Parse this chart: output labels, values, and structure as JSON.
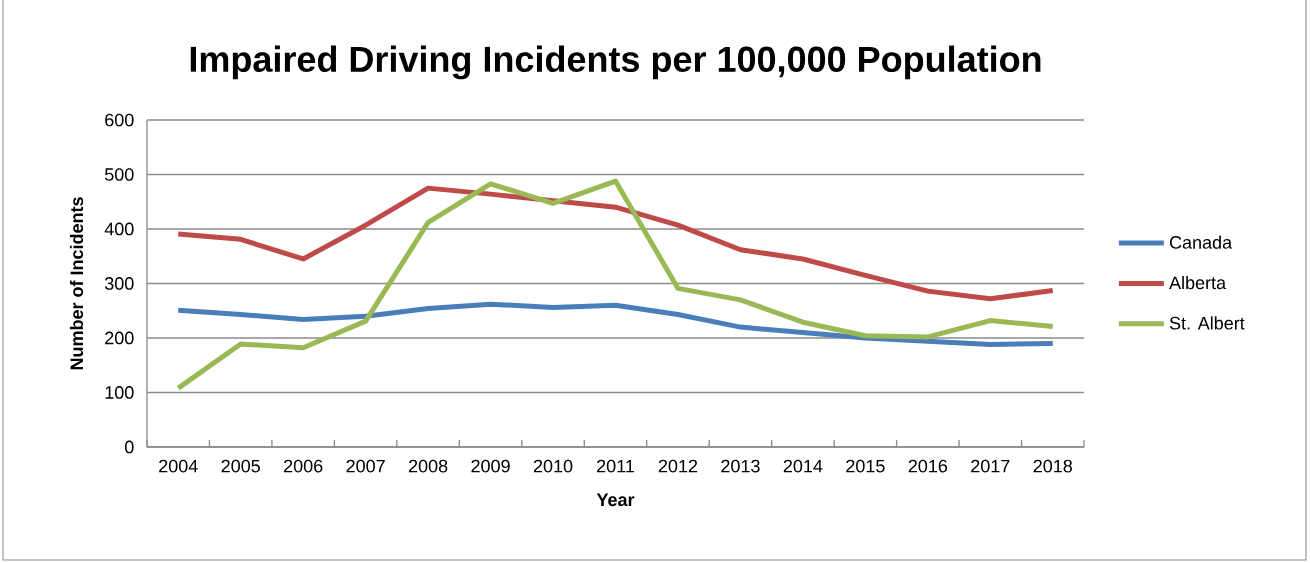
{
  "chart_data": {
    "type": "line",
    "title": "Impaired Driving Incidents per 100,000 Population",
    "xlabel": "Year",
    "ylabel": "Number of Incidents",
    "categories": [
      "2004",
      "2005",
      "2006",
      "2007",
      "2008",
      "2009",
      "2010",
      "2011",
      "2012",
      "2013",
      "2014",
      "2015",
      "2016",
      "2017",
      "2018"
    ],
    "series": [
      {
        "name": "Canada",
        "color": "#4a7ebb",
        "values": [
          251,
          243,
          234,
          240,
          254,
          262,
          256,
          260,
          243,
          220,
          210,
          200,
          194,
          188,
          190
        ]
      },
      {
        "name": "Alberta",
        "color": "#be4b48",
        "values": [
          391,
          381,
          345,
          407,
          475,
          464,
          452,
          440,
          407,
          362,
          345,
          315,
          286,
          272,
          287
        ]
      },
      {
        "name": "St. Albert",
        "color": "#98b954",
        "values": [
          108,
          189,
          182,
          231,
          412,
          483,
          447,
          488,
          291,
          270,
          229,
          204,
          202,
          232,
          221
        ]
      }
    ],
    "ylim": [
      0,
      600
    ],
    "yticks": [
      0,
      100,
      200,
      300,
      400,
      500,
      600
    ],
    "grid": "y",
    "legend": "right",
    "marker": "none",
    "line_style": "solid"
  }
}
